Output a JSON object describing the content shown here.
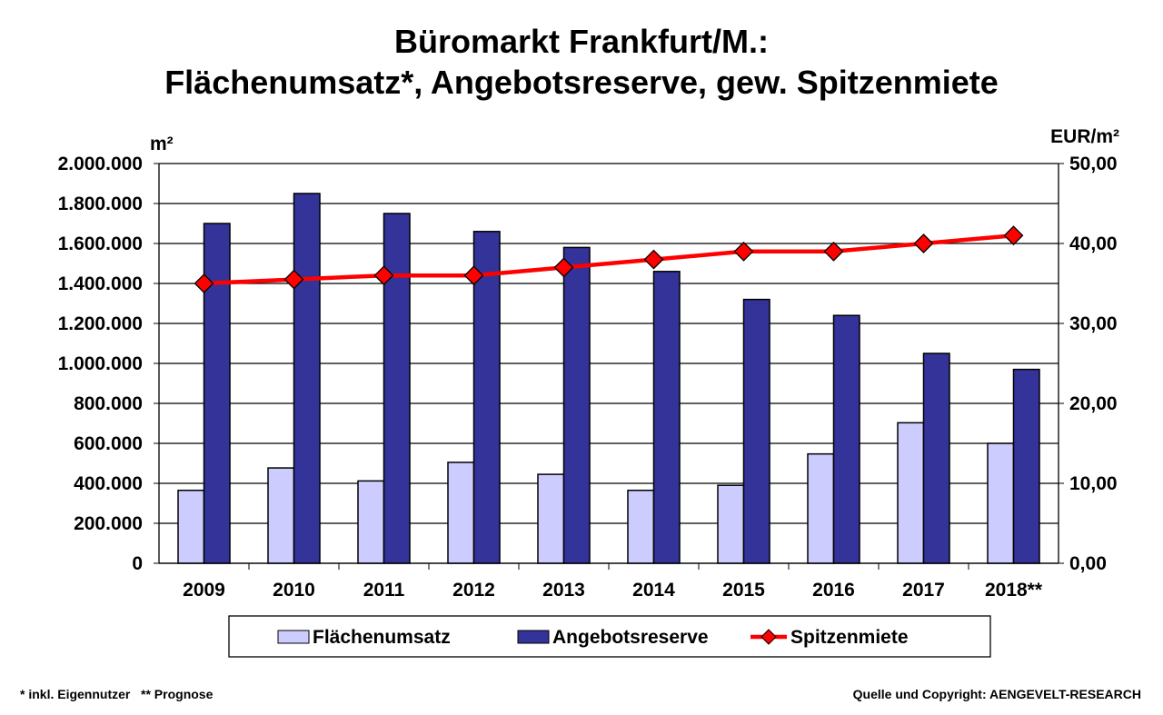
{
  "chart_data": {
    "type": "bar",
    "title": [
      "Büromarkt Frankfurt/M.:",
      "Flächenumsatz*, Angebotsreserve, gew. Spitzenmiete"
    ],
    "ylabel": "m²",
    "y2label": "EUR/m²",
    "ylim": [
      0,
      2000000
    ],
    "y2lim": [
      0,
      50
    ],
    "yticks": [
      "0",
      "200.000",
      "400.000",
      "600.000",
      "800.000",
      "1.000.000",
      "1.200.000",
      "1.400.000",
      "1.600.000",
      "1.800.000",
      "2.000.000"
    ],
    "y2ticks": [
      "0,00",
      "10,00",
      "20,00",
      "30,00",
      "40,00",
      "50,00"
    ],
    "grid": true,
    "legend_position": "bottom",
    "categories": [
      "2009",
      "2010",
      "2011",
      "2012",
      "2013",
      "2014",
      "2015",
      "2016",
      "2017",
      "2018**"
    ],
    "series": [
      {
        "name": "Flächenumsatz",
        "type": "bar",
        "axis": "left",
        "color": "#ccccff",
        "values": [
          365000,
          477000,
          412000,
          505000,
          445000,
          365000,
          390000,
          547000,
          703000,
          600000
        ]
      },
      {
        "name": "Angebotsreserve",
        "type": "bar",
        "axis": "left",
        "color": "#333399",
        "values": [
          1700000,
          1850000,
          1750000,
          1660000,
          1580000,
          1460000,
          1320000,
          1240000,
          1050000,
          970000
        ]
      },
      {
        "name": "Spitzenmiete",
        "type": "line",
        "axis": "right",
        "color": "#ff0000",
        "values": [
          35.0,
          35.5,
          36.0,
          36.0,
          37.0,
          38.0,
          39.0,
          39.0,
          40.0,
          41.0
        ]
      }
    ]
  },
  "footer": {
    "left": "* inkl. Eigennutzer   ** Prognose",
    "right": "Quelle und Copyright: AENGEVELT-RESEARCH"
  }
}
